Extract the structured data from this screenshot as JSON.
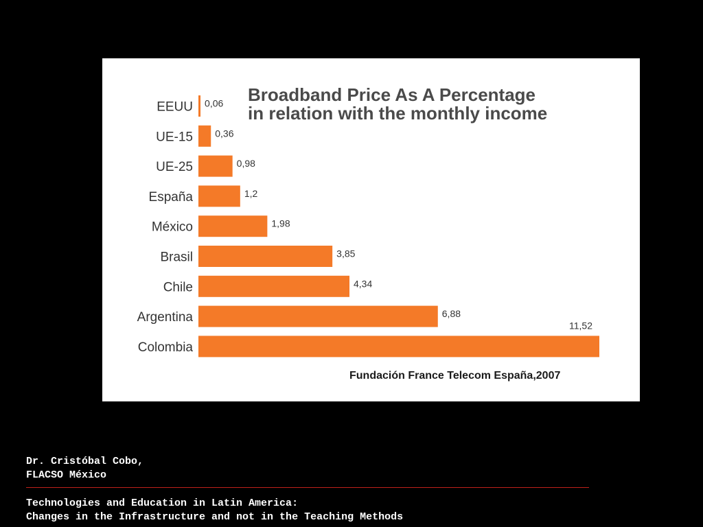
{
  "chart_data": {
    "type": "bar",
    "orientation": "horizontal",
    "title_line1": "Broadband Price As A Percentage",
    "title_line2": "in relation with the monthly income",
    "source": "Fundación France Telecom España,2007",
    "categories": [
      "EEUU",
      "UE-15",
      "UE-25",
      "España",
      "México",
      "Brasil",
      "Chile",
      "Argentina",
      "Colombia"
    ],
    "values": [
      0.06,
      0.36,
      0.98,
      1.2,
      1.98,
      3.85,
      4.34,
      6.88,
      11.52
    ],
    "value_labels": [
      "0,06",
      "0,36",
      "0,98",
      "1,2",
      "1,98",
      "3,85",
      "4,34",
      "6,88",
      "11,52"
    ],
    "xlim": [
      0,
      11.52
    ],
    "bar_color": "#f47a28",
    "grid": false,
    "legend": "none"
  },
  "footer": {
    "author_line1": "Dr. Cristóbal Cobo,",
    "author_line2": "FLACSO México",
    "talk_line1": "Technologies and Education in Latin America:",
    "talk_line2": "Changes in the Infrastructure and not in the Teaching Methods",
    "rule_color": "#c0201a"
  }
}
